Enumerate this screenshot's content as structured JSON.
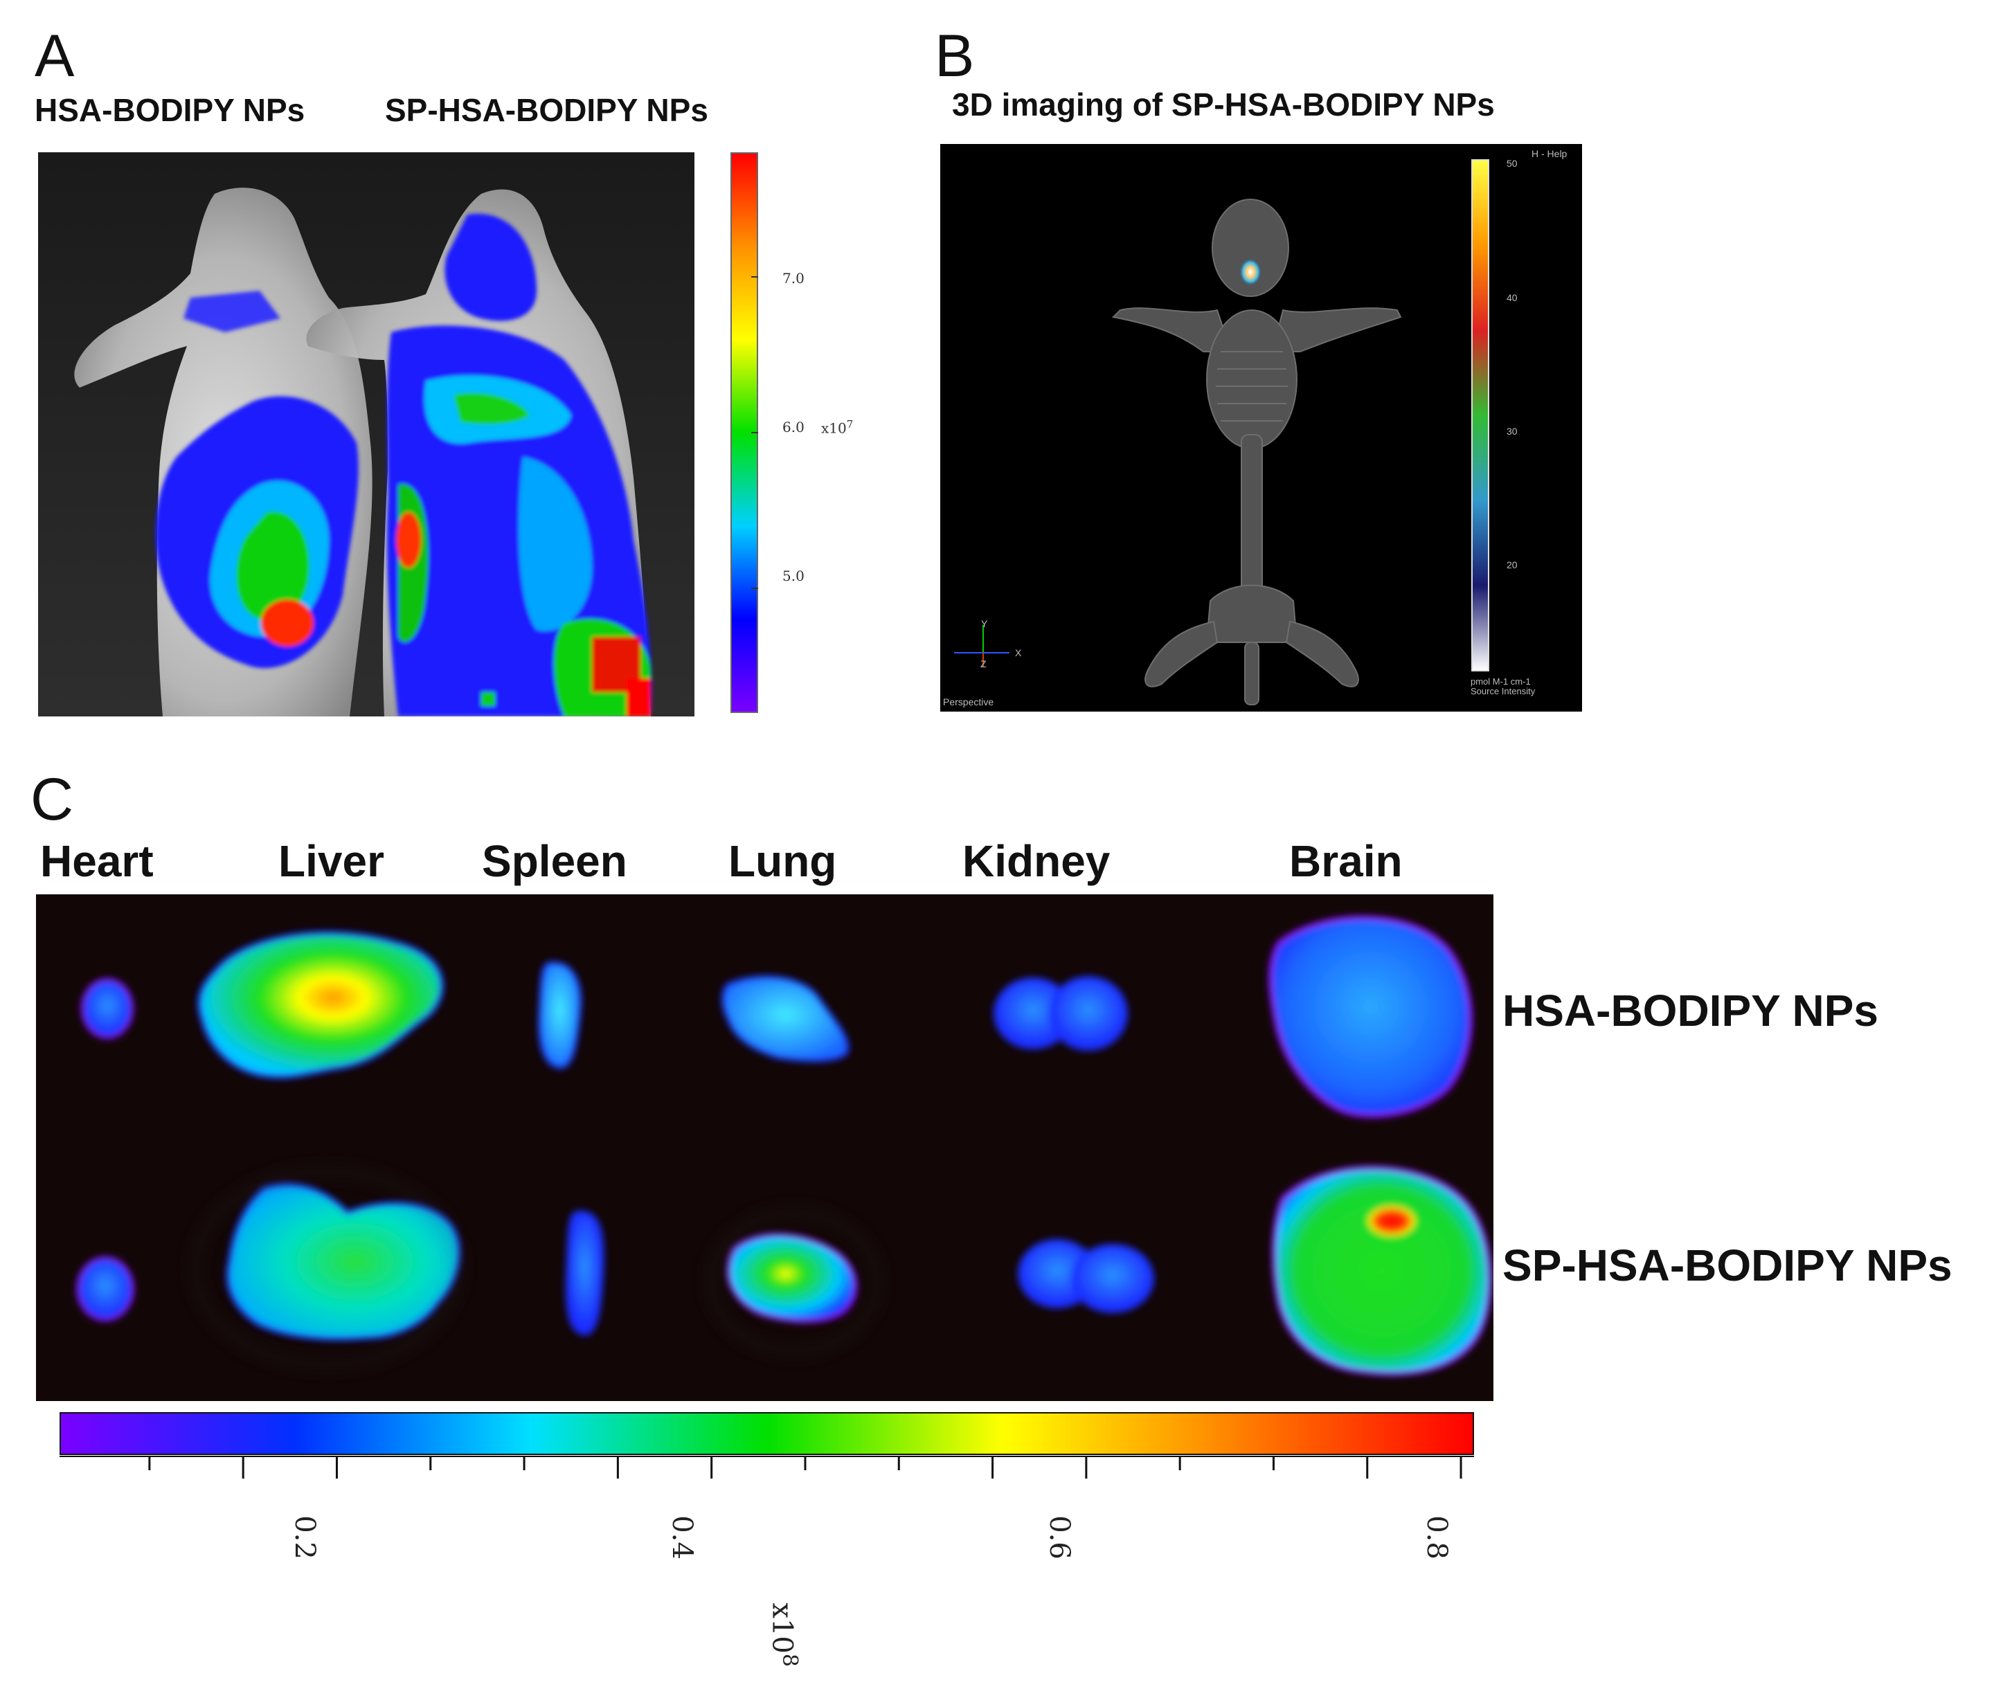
{
  "panel_a": {
    "letter": "A",
    "label_left": "HSA-BODIPY NPs",
    "label_right": "SP-HSA-BODIPY NPs",
    "colorbar": {
      "ticks": [
        "7.0",
        "6.0",
        "5.0"
      ],
      "tick_values": [
        7.0,
        6.0,
        5.0
      ],
      "multiplier": "x10",
      "exponent": "7",
      "range": [
        4.2,
        7.8
      ],
      "colors": [
        "#7a00ff",
        "#0000ff",
        "#00d0ff",
        "#00e000",
        "#ffff00",
        "#ff9000",
        "#ff0000"
      ]
    }
  },
  "panel_b": {
    "letter": "B",
    "title": "3D imaging of SP-HSA-BODIPY NPs",
    "help": "H - Help",
    "perspective": "Perspective",
    "axis_y": "Y",
    "axis_x": "X",
    "axis_z": "Z",
    "colorbar": {
      "ticks": [
        "50",
        "40",
        "30",
        "20"
      ],
      "tick_values": [
        50,
        40,
        30,
        20
      ],
      "range": [
        12,
        52
      ],
      "unit_line1": "pmol M-1 cm-1",
      "unit_line2": "Source Intensity",
      "colors": [
        "#ffffff",
        "#1a1a6e",
        "#3399cc",
        "#33bb33",
        "#dd2222",
        "#ff9900",
        "#ffff44"
      ]
    }
  },
  "panel_c": {
    "letter": "C",
    "organs": [
      "Heart",
      "Liver",
      "Spleen",
      "Lung",
      "Kidney",
      "Brain"
    ],
    "rows": [
      "HSA-BODIPY NPs",
      "SP-HSA-BODIPY NPs"
    ],
    "colorbar": {
      "ticks": [
        "0.2",
        "0.4",
        "0.6",
        "0.8"
      ],
      "tick_values": [
        0.2,
        0.4,
        0.6,
        0.8
      ],
      "multiplier": "x10",
      "exponent": "8",
      "range": [
        0.077,
        0.832
      ],
      "colors": [
        "#7a00ff",
        "#0030ff",
        "#00e0ff",
        "#00e000",
        "#ffff00",
        "#ff8000",
        "#ff0000"
      ]
    }
  }
}
